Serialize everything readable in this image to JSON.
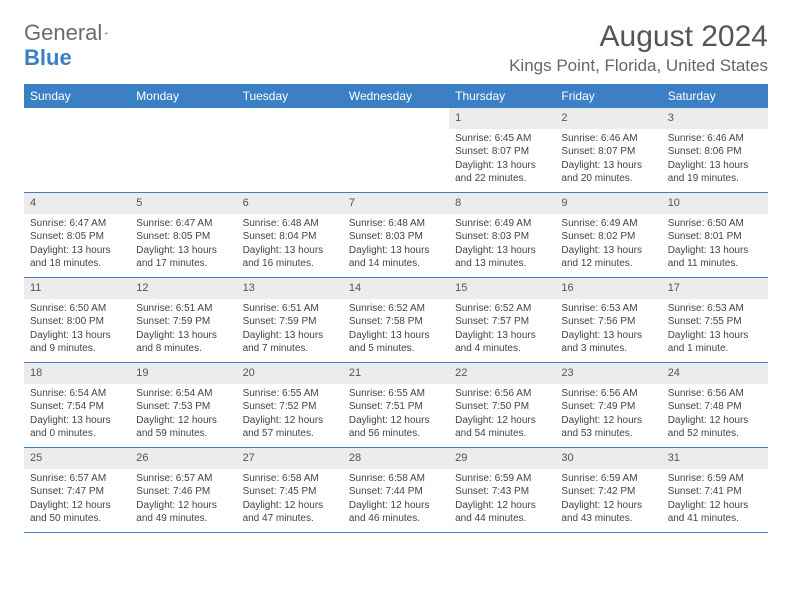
{
  "logo": {
    "text1": "General",
    "text2": "Blue"
  },
  "title": "August 2024",
  "location": "Kings Point, Florida, United States",
  "colors": {
    "header_bar": "#3b7fc4",
    "daynum_bg": "#ececec",
    "text": "#444444",
    "title": "#555555"
  },
  "weekdays": [
    "Sunday",
    "Monday",
    "Tuesday",
    "Wednesday",
    "Thursday",
    "Friday",
    "Saturday"
  ],
  "weeks": [
    [
      {
        "empty": true
      },
      {
        "empty": true
      },
      {
        "empty": true
      },
      {
        "empty": true
      },
      {
        "num": "1",
        "sunrise": "Sunrise: 6:45 AM",
        "sunset": "Sunset: 8:07 PM",
        "daylight": "Daylight: 13 hours and 22 minutes."
      },
      {
        "num": "2",
        "sunrise": "Sunrise: 6:46 AM",
        "sunset": "Sunset: 8:07 PM",
        "daylight": "Daylight: 13 hours and 20 minutes."
      },
      {
        "num": "3",
        "sunrise": "Sunrise: 6:46 AM",
        "sunset": "Sunset: 8:06 PM",
        "daylight": "Daylight: 13 hours and 19 minutes."
      }
    ],
    [
      {
        "num": "4",
        "sunrise": "Sunrise: 6:47 AM",
        "sunset": "Sunset: 8:05 PM",
        "daylight": "Daylight: 13 hours and 18 minutes."
      },
      {
        "num": "5",
        "sunrise": "Sunrise: 6:47 AM",
        "sunset": "Sunset: 8:05 PM",
        "daylight": "Daylight: 13 hours and 17 minutes."
      },
      {
        "num": "6",
        "sunrise": "Sunrise: 6:48 AM",
        "sunset": "Sunset: 8:04 PM",
        "daylight": "Daylight: 13 hours and 16 minutes."
      },
      {
        "num": "7",
        "sunrise": "Sunrise: 6:48 AM",
        "sunset": "Sunset: 8:03 PM",
        "daylight": "Daylight: 13 hours and 14 minutes."
      },
      {
        "num": "8",
        "sunrise": "Sunrise: 6:49 AM",
        "sunset": "Sunset: 8:03 PM",
        "daylight": "Daylight: 13 hours and 13 minutes."
      },
      {
        "num": "9",
        "sunrise": "Sunrise: 6:49 AM",
        "sunset": "Sunset: 8:02 PM",
        "daylight": "Daylight: 13 hours and 12 minutes."
      },
      {
        "num": "10",
        "sunrise": "Sunrise: 6:50 AM",
        "sunset": "Sunset: 8:01 PM",
        "daylight": "Daylight: 13 hours and 11 minutes."
      }
    ],
    [
      {
        "num": "11",
        "sunrise": "Sunrise: 6:50 AM",
        "sunset": "Sunset: 8:00 PM",
        "daylight": "Daylight: 13 hours and 9 minutes."
      },
      {
        "num": "12",
        "sunrise": "Sunrise: 6:51 AM",
        "sunset": "Sunset: 7:59 PM",
        "daylight": "Daylight: 13 hours and 8 minutes."
      },
      {
        "num": "13",
        "sunrise": "Sunrise: 6:51 AM",
        "sunset": "Sunset: 7:59 PM",
        "daylight": "Daylight: 13 hours and 7 minutes."
      },
      {
        "num": "14",
        "sunrise": "Sunrise: 6:52 AM",
        "sunset": "Sunset: 7:58 PM",
        "daylight": "Daylight: 13 hours and 5 minutes."
      },
      {
        "num": "15",
        "sunrise": "Sunrise: 6:52 AM",
        "sunset": "Sunset: 7:57 PM",
        "daylight": "Daylight: 13 hours and 4 minutes."
      },
      {
        "num": "16",
        "sunrise": "Sunrise: 6:53 AM",
        "sunset": "Sunset: 7:56 PM",
        "daylight": "Daylight: 13 hours and 3 minutes."
      },
      {
        "num": "17",
        "sunrise": "Sunrise: 6:53 AM",
        "sunset": "Sunset: 7:55 PM",
        "daylight": "Daylight: 13 hours and 1 minute."
      }
    ],
    [
      {
        "num": "18",
        "sunrise": "Sunrise: 6:54 AM",
        "sunset": "Sunset: 7:54 PM",
        "daylight": "Daylight: 13 hours and 0 minutes."
      },
      {
        "num": "19",
        "sunrise": "Sunrise: 6:54 AM",
        "sunset": "Sunset: 7:53 PM",
        "daylight": "Daylight: 12 hours and 59 minutes."
      },
      {
        "num": "20",
        "sunrise": "Sunrise: 6:55 AM",
        "sunset": "Sunset: 7:52 PM",
        "daylight": "Daylight: 12 hours and 57 minutes."
      },
      {
        "num": "21",
        "sunrise": "Sunrise: 6:55 AM",
        "sunset": "Sunset: 7:51 PM",
        "daylight": "Daylight: 12 hours and 56 minutes."
      },
      {
        "num": "22",
        "sunrise": "Sunrise: 6:56 AM",
        "sunset": "Sunset: 7:50 PM",
        "daylight": "Daylight: 12 hours and 54 minutes."
      },
      {
        "num": "23",
        "sunrise": "Sunrise: 6:56 AM",
        "sunset": "Sunset: 7:49 PM",
        "daylight": "Daylight: 12 hours and 53 minutes."
      },
      {
        "num": "24",
        "sunrise": "Sunrise: 6:56 AM",
        "sunset": "Sunset: 7:48 PM",
        "daylight": "Daylight: 12 hours and 52 minutes."
      }
    ],
    [
      {
        "num": "25",
        "sunrise": "Sunrise: 6:57 AM",
        "sunset": "Sunset: 7:47 PM",
        "daylight": "Daylight: 12 hours and 50 minutes."
      },
      {
        "num": "26",
        "sunrise": "Sunrise: 6:57 AM",
        "sunset": "Sunset: 7:46 PM",
        "daylight": "Daylight: 12 hours and 49 minutes."
      },
      {
        "num": "27",
        "sunrise": "Sunrise: 6:58 AM",
        "sunset": "Sunset: 7:45 PM",
        "daylight": "Daylight: 12 hours and 47 minutes."
      },
      {
        "num": "28",
        "sunrise": "Sunrise: 6:58 AM",
        "sunset": "Sunset: 7:44 PM",
        "daylight": "Daylight: 12 hours and 46 minutes."
      },
      {
        "num": "29",
        "sunrise": "Sunrise: 6:59 AM",
        "sunset": "Sunset: 7:43 PM",
        "daylight": "Daylight: 12 hours and 44 minutes."
      },
      {
        "num": "30",
        "sunrise": "Sunrise: 6:59 AM",
        "sunset": "Sunset: 7:42 PM",
        "daylight": "Daylight: 12 hours and 43 minutes."
      },
      {
        "num": "31",
        "sunrise": "Sunrise: 6:59 AM",
        "sunset": "Sunset: 7:41 PM",
        "daylight": "Daylight: 12 hours and 41 minutes."
      }
    ]
  ]
}
